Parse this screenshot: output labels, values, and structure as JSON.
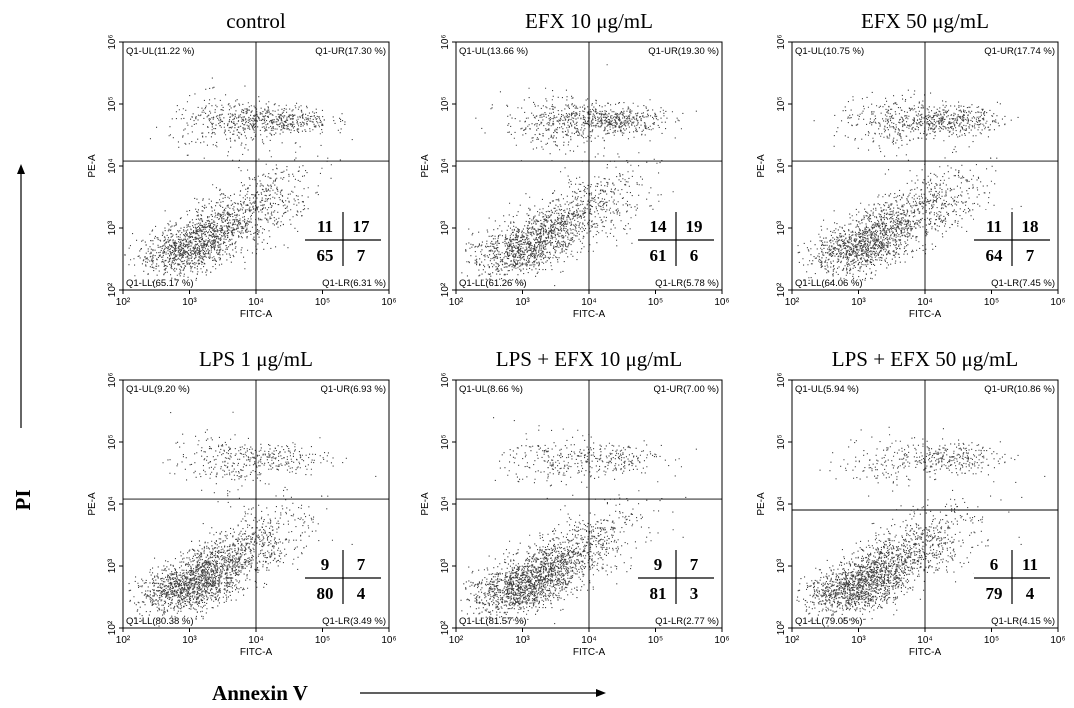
{
  "figure": {
    "y_axis_label": "PI",
    "x_axis_label": "Annexin V"
  },
  "chart_data": [
    {
      "type": "scatter",
      "title": "control",
      "xlabel": "FITC-A",
      "ylabel": "PE-A",
      "xscale": "log",
      "yscale": "log",
      "xlim": [
        100,
        1000000
      ],
      "ylim": [
        100,
        1000000
      ],
      "x_ticks": [
        "10²",
        "10³",
        "10⁴",
        "10⁵",
        "10⁶"
      ],
      "y_ticks": [
        "10²",
        "10³",
        "10⁴",
        "10⁵",
        "10⁶"
      ],
      "gate_x": 10000,
      "gate_y": 12000,
      "quadrants": {
        "UL": "Q1-UL(11.22 %)",
        "UR": "Q1-UR(17.30 %)",
        "LL": "Q1-LL(65.17 %)",
        "LR": "Q1-LR(6.31 %)"
      },
      "quadrant_percent": {
        "UL": 11.22,
        "UR": 17.3,
        "LL": 65.17,
        "LR": 6.31
      },
      "inset_table": {
        "UL": "11",
        "UR": "17",
        "LL": "65",
        "LR": "7"
      }
    },
    {
      "type": "scatter",
      "title": "EFX 10 μg/mL",
      "xlabel": "FITC-A",
      "ylabel": "PE-A",
      "xscale": "log",
      "yscale": "log",
      "xlim": [
        100,
        1000000
      ],
      "ylim": [
        100,
        1000000
      ],
      "x_ticks": [
        "10²",
        "10³",
        "10⁴",
        "10⁵",
        "10⁶"
      ],
      "y_ticks": [
        "10²",
        "10³",
        "10⁴",
        "10⁵",
        "10⁶"
      ],
      "gate_x": 10000,
      "gate_y": 12000,
      "quadrants": {
        "UL": "Q1-UL(13.66 %)",
        "UR": "Q1-UR(19.30 %)",
        "LL": "Q1-LL(61.26 %)",
        "LR": "Q1-LR(5.78 %)"
      },
      "quadrant_percent": {
        "UL": 13.66,
        "UR": 19.3,
        "LL": 61.26,
        "LR": 5.78
      },
      "inset_table": {
        "UL": "14",
        "UR": "19",
        "LL": "61",
        "LR": "6"
      }
    },
    {
      "type": "scatter",
      "title": "EFX 50 μg/mL",
      "xlabel": "FITC-A",
      "ylabel": "PE-A",
      "xscale": "log",
      "yscale": "log",
      "xlim": [
        100,
        1000000
      ],
      "ylim": [
        100,
        1000000
      ],
      "x_ticks": [
        "10²",
        "10³",
        "10⁴",
        "10⁵",
        "10⁶"
      ],
      "y_ticks": [
        "10²",
        "10³",
        "10⁴",
        "10⁵",
        "10⁶"
      ],
      "gate_x": 10000,
      "gate_y": 12000,
      "quadrants": {
        "UL": "Q1-UL(10.75 %)",
        "UR": "Q1-UR(17.74 %)",
        "LL": "Q1-LL(64.06 %)",
        "LR": "Q1-LR(7.45 %)"
      },
      "quadrant_percent": {
        "UL": 10.75,
        "UR": 17.74,
        "LL": 64.06,
        "LR": 7.45
      },
      "inset_table": {
        "UL": "11",
        "UR": "18",
        "LL": "64",
        "LR": "7"
      }
    },
    {
      "type": "scatter",
      "title": "LPS 1 μg/mL",
      "xlabel": "FITC-A",
      "ylabel": "PE-A",
      "xscale": "log",
      "yscale": "log",
      "xlim": [
        100,
        1000000
      ],
      "ylim": [
        100,
        1000000
      ],
      "x_ticks": [
        "10²",
        "10³",
        "10⁴",
        "10⁵",
        "10⁶"
      ],
      "y_ticks": [
        "10²",
        "10³",
        "10⁴",
        "10⁵",
        "10⁶"
      ],
      "gate_x": 10000,
      "gate_y": 12000,
      "quadrants": {
        "UL": "Q1-UL(9.20 %)",
        "UR": "Q1-UR(6.93 %)",
        "LL": "Q1-LL(80.38 %)",
        "LR": "Q1-LR(3.49 %)"
      },
      "quadrant_percent": {
        "UL": 9.2,
        "UR": 6.93,
        "LL": 80.38,
        "LR": 3.49
      },
      "inset_table": {
        "UL": "9",
        "UR": "7",
        "LL": "80",
        "LR": "4"
      }
    },
    {
      "type": "scatter",
      "title": "LPS + EFX 10 μg/mL",
      "xlabel": "FITC-A",
      "ylabel": "PE-A",
      "xscale": "log",
      "yscale": "log",
      "xlim": [
        100,
        1000000
      ],
      "ylim": [
        100,
        1000000
      ],
      "x_ticks": [
        "10²",
        "10³",
        "10⁴",
        "10⁵",
        "10⁶"
      ],
      "y_ticks": [
        "10²",
        "10³",
        "10⁴",
        "10⁵",
        "10⁶"
      ],
      "gate_x": 10000,
      "gate_y": 12000,
      "quadrants": {
        "UL": "Q1-UL(8.66 %)",
        "UR": "Q1-UR(7.00 %)",
        "LL": "Q1-LL(81.57 %)",
        "LR": "Q1-LR(2.77 %)"
      },
      "quadrant_percent": {
        "UL": 8.66,
        "UR": 7.0,
        "LL": 81.57,
        "LR": 2.77
      },
      "inset_table": {
        "UL": "9",
        "UR": "7",
        "LL": "81",
        "LR": "3"
      }
    },
    {
      "type": "scatter",
      "title": "LPS + EFX 50 μg/mL",
      "xlabel": "FITC-A",
      "ylabel": "PE-A",
      "xscale": "log",
      "yscale": "log",
      "xlim": [
        100,
        1000000
      ],
      "ylim": [
        100,
        1000000
      ],
      "x_ticks": [
        "10²",
        "10³",
        "10⁴",
        "10⁵",
        "10⁶"
      ],
      "y_ticks": [
        "10²",
        "10³",
        "10⁴",
        "10⁵",
        "10⁶"
      ],
      "gate_x": 10000,
      "gate_y": 8000,
      "quadrants": {
        "UL": "Q1-UL(5.94 %)",
        "UR": "Q1-UR(10.86 %)",
        "LL": "Q1-LL(79.05 %)",
        "LR": "Q1-LR(4.15 %)"
      },
      "quadrant_percent": {
        "UL": 5.94,
        "UR": 10.86,
        "LL": 79.05,
        "LR": 4.15
      },
      "inset_table": {
        "UL": "6",
        "UR": "11",
        "LL": "79",
        "LR": "4"
      }
    }
  ]
}
